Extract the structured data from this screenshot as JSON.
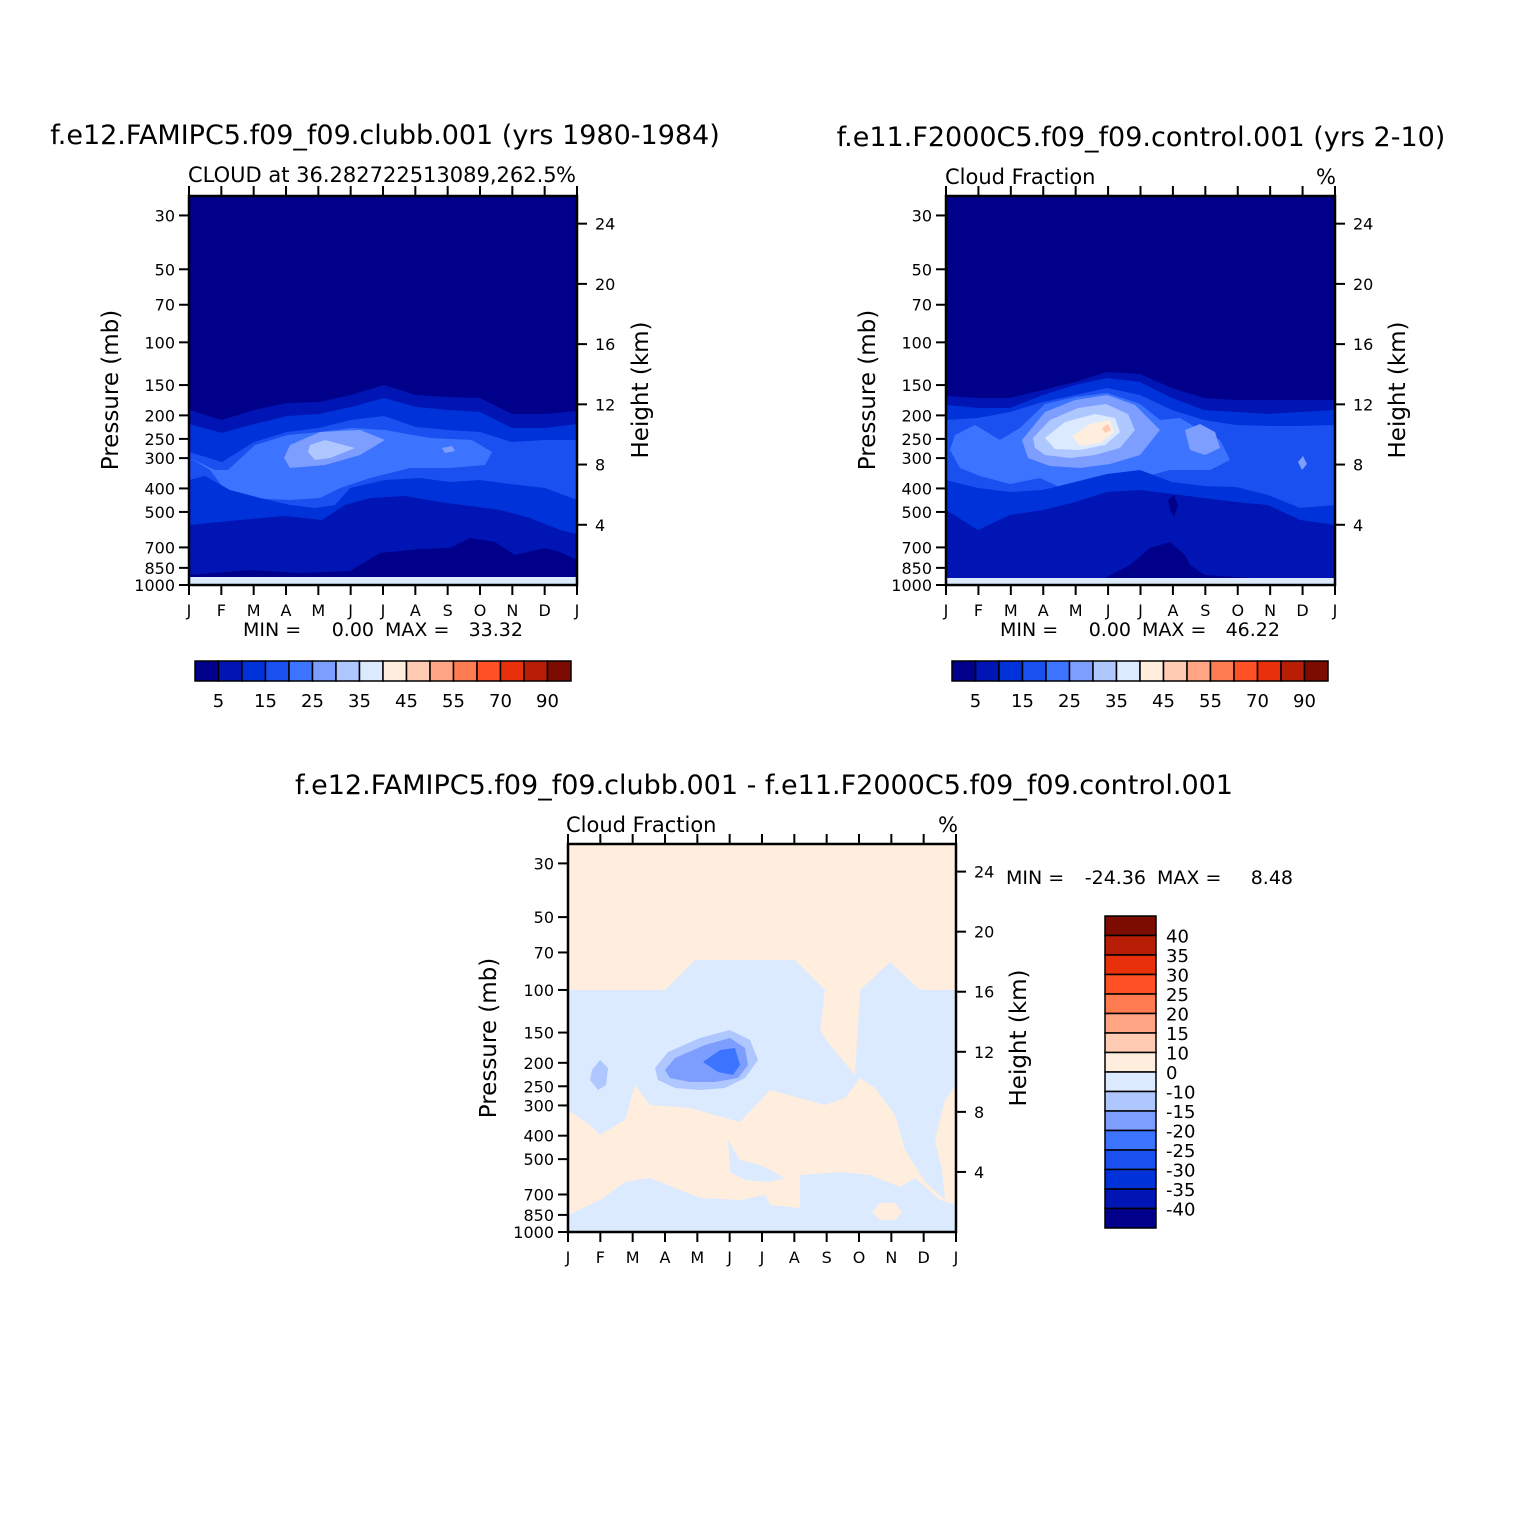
{
  "colors": {
    "levels": [
      "#00008a",
      "#0015b3",
      "#0032da",
      "#1a50f0",
      "#3d74ff",
      "#7d9dff",
      "#afc7ff",
      "#dbeaff",
      "#ffeedd",
      "#ffcbb3",
      "#ffa583",
      "#ff7c52",
      "#ff5026",
      "#e8300a",
      "#b81e05",
      "#7c0c02"
    ],
    "diff_levels": [
      "#00008a",
      "#0015b3",
      "#0032da",
      "#1a50f0",
      "#3d74ff",
      "#7d9dff",
      "#afc7ff",
      "#dbeaff",
      "#ffeedd",
      "#ffcbb3",
      "#ffa583",
      "#ff7c52",
      "#ff5026",
      "#e8300a",
      "#b81e05",
      "#7c0c02"
    ]
  },
  "chart_data": [
    {
      "type": "heatmap",
      "title": "f.e12.FAMIPC5.f09_f09.clubb.001 (yrs 1980-1984)",
      "subtitle": "CLOUD at 36.282722513089,262.5",
      "units": "%",
      "xlabel": "",
      "ylabel": "Pressure (mb)",
      "ylabel_right": "Height (km)",
      "x_ticks": [
        "J",
        "F",
        "M",
        "A",
        "M",
        "J",
        "J",
        "A",
        "S",
        "O",
        "N",
        "D",
        "J"
      ],
      "y_ticks": [
        "30",
        "50",
        "70",
        "100",
        "150",
        "200",
        "250",
        "300",
        "400",
        "500",
        "700",
        "850",
        "1000"
      ],
      "y_ticks_right": [
        "24",
        "20",
        "16",
        "12",
        "8",
        "4"
      ],
      "min_label": "MIN =",
      "min_value": "0.00",
      "max_label": "MAX =",
      "max_value": "33.32",
      "colorbar_labels": [
        "5",
        "15",
        "25",
        "35",
        "45",
        "55",
        "70",
        "90"
      ],
      "peak": {
        "month": 4.8,
        "pressure": 260,
        "value": 33.32
      }
    },
    {
      "type": "heatmap",
      "title": "f.e11.F2000C5.f09_f09.control.001 (yrs 2-10)",
      "subtitle": "Cloud Fraction",
      "units": "%",
      "xlabel": "",
      "ylabel": "Pressure (mb)",
      "ylabel_right": "Height (km)",
      "x_ticks": [
        "J",
        "F",
        "M",
        "A",
        "M",
        "J",
        "J",
        "A",
        "S",
        "O",
        "N",
        "D",
        "J"
      ],
      "y_ticks": [
        "30",
        "50",
        "70",
        "100",
        "150",
        "200",
        "250",
        "300",
        "400",
        "500",
        "700",
        "850",
        "1000"
      ],
      "y_ticks_right": [
        "24",
        "20",
        "16",
        "12",
        "8",
        "4"
      ],
      "min_label": "MIN =",
      "min_value": "0.00",
      "max_label": "MAX =",
      "max_value": "46.22",
      "colorbar_labels": [
        "5",
        "15",
        "25",
        "35",
        "45",
        "55",
        "70",
        "90"
      ],
      "peak": {
        "month": 5.0,
        "pressure": 250,
        "value": 46.22
      }
    },
    {
      "type": "heatmap",
      "title": "f.e12.FAMIPC5.f09_f09.clubb.001 - f.e11.F2000C5.f09_f09.control.001",
      "subtitle": "Cloud Fraction",
      "units": "%",
      "xlabel": "",
      "ylabel": "Pressure (mb)",
      "ylabel_right": "Height (km)",
      "x_ticks": [
        "J",
        "F",
        "M",
        "A",
        "M",
        "J",
        "J",
        "A",
        "S",
        "O",
        "N",
        "D",
        "J"
      ],
      "y_ticks": [
        "30",
        "50",
        "70",
        "100",
        "150",
        "200",
        "250",
        "300",
        "400",
        "500",
        "700",
        "850",
        "1000"
      ],
      "y_ticks_right": [
        "24",
        "20",
        "16",
        "12",
        "8",
        "4"
      ],
      "min_label": "MIN =",
      "min_value": "-24.36",
      "max_label": "MAX =",
      "max_value": "8.48",
      "colorbar_labels": [
        "40",
        "35",
        "30",
        "25",
        "20",
        "15",
        "10",
        "0",
        "-10",
        "-15",
        "-20",
        "-25",
        "-30",
        "-35",
        "-40"
      ],
      "peak": {
        "month": 4.6,
        "pressure": 200,
        "value": -24.36
      }
    }
  ]
}
